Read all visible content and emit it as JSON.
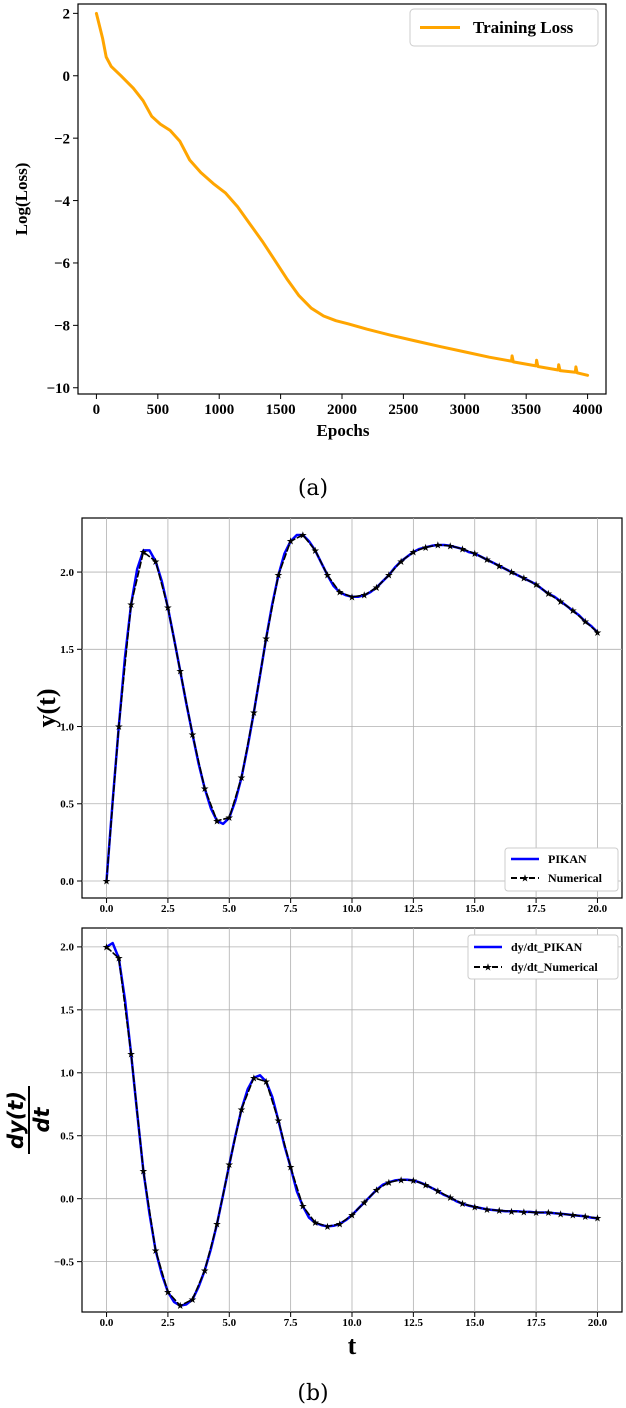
{
  "colors": {
    "loss": "#FFA500",
    "pikan": "#0000FF",
    "numerical": "#000000",
    "grid": "#b0b0b0"
  },
  "captions": {
    "a": "(a)",
    "b": "(b)"
  },
  "chart_data": [
    {
      "type": "line",
      "xlabel": "Epochs",
      "ylabel": "Log(Loss)",
      "xlim": [
        -150,
        4150
      ],
      "ylim": [
        -10.2,
        2.3
      ],
      "xticks": [
        0,
        500,
        1000,
        1500,
        2000,
        2500,
        3000,
        3500,
        4000
      ],
      "xtick_labels": [
        "0",
        "500",
        "1000",
        "1500",
        "2000",
        "2500",
        "3000",
        "3500",
        "4000"
      ],
      "yticks": [
        2,
        0,
        -2,
        -4,
        -6,
        -8,
        -10
      ],
      "ytick_labels": [
        "2",
        "0",
        "−2",
        "−4",
        "−6",
        "−8",
        "−10"
      ],
      "grid": false,
      "legend_position": "top-right",
      "series": [
        {
          "name": "Training Loss",
          "x": [
            0,
            50,
            80,
            120,
            200,
            300,
            380,
            450,
            520,
            600,
            680,
            760,
            850,
            950,
            1050,
            1150,
            1250,
            1350,
            1450,
            1550,
            1650,
            1750,
            1850,
            1950,
            2050,
            2200,
            2400,
            2600,
            2800,
            3000,
            3200,
            3380,
            3385,
            3395,
            3580,
            3585,
            3595,
            3760,
            3765,
            3775,
            3900,
            3905,
            3915,
            4000
          ],
          "y": [
            2.0,
            1.2,
            0.6,
            0.3,
            0.0,
            -0.4,
            -0.8,
            -1.3,
            -1.55,
            -1.75,
            -2.1,
            -2.7,
            -3.1,
            -3.45,
            -3.75,
            -4.2,
            -4.75,
            -5.3,
            -5.9,
            -6.5,
            -7.05,
            -7.45,
            -7.7,
            -7.85,
            -7.95,
            -8.12,
            -8.32,
            -8.5,
            -8.68,
            -8.85,
            -9.02,
            -9.15,
            -8.98,
            -9.17,
            -9.3,
            -9.12,
            -9.32,
            -9.43,
            -9.26,
            -9.45,
            -9.5,
            -9.33,
            -9.52,
            -9.6
          ]
        }
      ]
    },
    {
      "type": "line",
      "xlabel": "",
      "ylabel": "y(t)",
      "xlim": [
        -1.0,
        21.0
      ],
      "ylim": [
        -0.11,
        2.35
      ],
      "xticks": [
        0,
        2.5,
        5,
        7.5,
        10,
        12.5,
        15,
        17.5,
        20
      ],
      "xtick_labels": [
        "0.0",
        "2.5",
        "5.0",
        "7.5",
        "10.0",
        "12.5",
        "15.0",
        "17.5",
        "20.0"
      ],
      "yticks": [
        0.0,
        0.5,
        1.0,
        1.5,
        2.0
      ],
      "ytick_labels": [
        "0.0",
        "0.5",
        "1.0",
        "1.5",
        "2.0"
      ],
      "grid": true,
      "legend_position": "lower-right",
      "series": [
        {
          "name": "PIKAN",
          "x": [
            0,
            0.25,
            0.5,
            0.75,
            1.0,
            1.25,
            1.5,
            1.75,
            2.0,
            2.25,
            2.5,
            2.75,
            3.0,
            3.25,
            3.5,
            3.75,
            4.0,
            4.25,
            4.5,
            4.75,
            5.0,
            5.25,
            5.5,
            5.75,
            6.0,
            6.25,
            6.5,
            6.75,
            7.0,
            7.25,
            7.5,
            7.75,
            8.0,
            8.25,
            8.5,
            8.75,
            9.0,
            9.25,
            9.5,
            9.75,
            10.0,
            10.25,
            10.5,
            10.75,
            11.0,
            11.25,
            11.5,
            11.75,
            12.0,
            12.25,
            12.5,
            12.75,
            13.0,
            13.25,
            13.5,
            13.75,
            14.0,
            14.25,
            14.5,
            14.75,
            15.0,
            15.25,
            15.5,
            15.75,
            16.0,
            16.25,
            16.5,
            16.75,
            17.0,
            17.25,
            17.5,
            17.75,
            18.0,
            18.25,
            18.5,
            18.75,
            19.0,
            19.25,
            19.5,
            19.75,
            20.0
          ],
          "y": [
            0.0,
            0.52,
            1.0,
            1.45,
            1.79,
            2.02,
            2.14,
            2.14,
            2.07,
            1.94,
            1.77,
            1.57,
            1.36,
            1.15,
            0.95,
            0.76,
            0.6,
            0.47,
            0.39,
            0.37,
            0.41,
            0.52,
            0.67,
            0.87,
            1.09,
            1.33,
            1.57,
            1.79,
            1.98,
            2.12,
            2.2,
            2.24,
            2.24,
            2.2,
            2.14,
            2.06,
            1.98,
            1.91,
            1.87,
            1.85,
            1.84,
            1.84,
            1.85,
            1.87,
            1.9,
            1.94,
            1.98,
            2.03,
            2.07,
            2.1,
            2.13,
            2.15,
            2.16,
            2.17,
            2.175,
            2.175,
            2.17,
            2.16,
            2.15,
            2.13,
            2.12,
            2.1,
            2.08,
            2.06,
            2.04,
            2.02,
            2.0,
            1.98,
            1.96,
            1.94,
            1.92,
            1.89,
            1.86,
            1.84,
            1.81,
            1.78,
            1.75,
            1.72,
            1.68,
            1.65,
            1.61
          ]
        },
        {
          "name": "Numerical",
          "x": [
            0,
            0.5,
            1.0,
            1.5,
            2.0,
            2.5,
            3.0,
            3.5,
            4.0,
            4.5,
            5.0,
            5.5,
            6.0,
            6.5,
            7.0,
            7.5,
            8.0,
            8.5,
            9.0,
            9.5,
            10.0,
            10.5,
            11.0,
            11.5,
            12.0,
            12.5,
            13.0,
            13.5,
            14.0,
            14.5,
            15.0,
            15.5,
            16.0,
            16.5,
            17.0,
            17.5,
            18.0,
            18.5,
            19.0,
            19.5,
            20.0
          ],
          "y": [
            0.0,
            1.0,
            1.79,
            2.13,
            2.07,
            1.77,
            1.36,
            0.95,
            0.6,
            0.39,
            0.41,
            0.67,
            1.09,
            1.57,
            1.98,
            2.2,
            2.24,
            2.14,
            1.98,
            1.87,
            1.84,
            1.85,
            1.9,
            1.98,
            2.07,
            2.13,
            2.16,
            2.175,
            2.17,
            2.15,
            2.12,
            2.08,
            2.04,
            2.0,
            1.96,
            1.92,
            1.86,
            1.81,
            1.75,
            1.68,
            1.61
          ]
        }
      ]
    },
    {
      "type": "line",
      "xlabel": "t",
      "ylabel": "dy(t)/dt",
      "ylabel_numerator": "dy(t)",
      "ylabel_denominator": "dt",
      "xlim": [
        -1.0,
        21.0
      ],
      "ylim": [
        -0.9,
        2.15
      ],
      "xticks": [
        0,
        2.5,
        5,
        7.5,
        10,
        12.5,
        15,
        17.5,
        20
      ],
      "xtick_labels": [
        "0.0",
        "2.5",
        "5.0",
        "7.5",
        "10.0",
        "12.5",
        "15.0",
        "17.5",
        "20.0"
      ],
      "yticks": [
        2.0,
        1.5,
        1.0,
        0.5,
        0.0,
        -0.5
      ],
      "ytick_labels": [
        "2.0",
        "1.5",
        "1.0",
        "0.5",
        "0.0",
        "−0.5"
      ],
      "grid": true,
      "legend_position": "top-right",
      "series": [
        {
          "name": "dy/dt_PIKAN",
          "x": [
            0,
            0.25,
            0.5,
            0.75,
            1.0,
            1.25,
            1.5,
            1.75,
            2.0,
            2.25,
            2.5,
            2.75,
            3.0,
            3.25,
            3.5,
            3.75,
            4.0,
            4.25,
            4.5,
            4.75,
            5.0,
            5.25,
            5.5,
            5.75,
            6.0,
            6.25,
            6.5,
            6.75,
            7.0,
            7.25,
            7.5,
            7.75,
            8.0,
            8.25,
            8.5,
            8.75,
            9.0,
            9.25,
            9.5,
            9.75,
            10.0,
            10.25,
            10.5,
            10.75,
            11.0,
            11.25,
            11.5,
            11.75,
            12.0,
            12.25,
            12.5,
            12.75,
            13.0,
            13.25,
            13.5,
            13.75,
            14.0,
            14.25,
            14.5,
            14.75,
            15.0,
            15.25,
            15.5,
            15.75,
            16.0,
            16.25,
            16.5,
            16.75,
            17.0,
            17.25,
            17.5,
            17.75,
            18.0,
            18.25,
            18.5,
            18.75,
            19.0,
            19.25,
            19.5,
            19.75,
            20.0
          ],
          "y": [
            2.0,
            2.03,
            1.91,
            1.58,
            1.15,
            0.68,
            0.22,
            -0.12,
            -0.41,
            -0.6,
            -0.74,
            -0.82,
            -0.85,
            -0.84,
            -0.8,
            -0.7,
            -0.57,
            -0.4,
            -0.2,
            0.03,
            0.27,
            0.5,
            0.71,
            0.87,
            0.96,
            0.98,
            0.93,
            0.81,
            0.62,
            0.42,
            0.25,
            0.06,
            -0.06,
            -0.15,
            -0.19,
            -0.21,
            -0.22,
            -0.215,
            -0.2,
            -0.17,
            -0.13,
            -0.08,
            -0.03,
            0.02,
            0.07,
            0.11,
            0.13,
            0.145,
            0.15,
            0.15,
            0.145,
            0.13,
            0.11,
            0.085,
            0.06,
            0.03,
            0.01,
            -0.02,
            -0.04,
            -0.055,
            -0.065,
            -0.075,
            -0.085,
            -0.09,
            -0.095,
            -0.1,
            -0.1,
            -0.1,
            -0.105,
            -0.105,
            -0.11,
            -0.11,
            -0.11,
            -0.115,
            -0.12,
            -0.125,
            -0.13,
            -0.135,
            -0.14,
            -0.15,
            -0.155
          ]
        },
        {
          "name": "dy/dt_Numerical",
          "x": [
            0,
            0.5,
            1.0,
            1.5,
            2.0,
            2.5,
            3.0,
            3.5,
            4.0,
            4.5,
            5.0,
            5.5,
            6.0,
            6.5,
            7.0,
            7.5,
            8.0,
            8.5,
            9.0,
            9.5,
            10.0,
            10.5,
            11.0,
            11.5,
            12.0,
            12.5,
            13.0,
            13.5,
            14.0,
            14.5,
            15.0,
            15.5,
            16.0,
            16.5,
            17.0,
            17.5,
            18.0,
            18.5,
            19.0,
            19.5,
            20.0
          ],
          "y": [
            2.0,
            1.91,
            1.15,
            0.22,
            -0.41,
            -0.74,
            -0.85,
            -0.8,
            -0.57,
            -0.2,
            0.27,
            0.71,
            0.96,
            0.93,
            0.62,
            0.25,
            -0.06,
            -0.19,
            -0.22,
            -0.2,
            -0.13,
            -0.03,
            0.07,
            0.13,
            0.15,
            0.145,
            0.11,
            0.06,
            0.01,
            -0.04,
            -0.065,
            -0.085,
            -0.095,
            -0.1,
            -0.105,
            -0.11,
            -0.11,
            -0.12,
            -0.13,
            -0.14,
            -0.155
          ]
        }
      ]
    }
  ]
}
